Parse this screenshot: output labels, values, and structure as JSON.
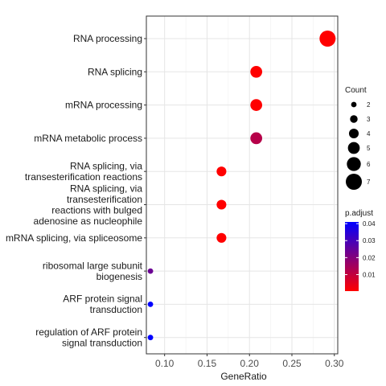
{
  "chart_data": {
    "type": "scatter",
    "xlabel": "GeneRatio",
    "xlim": [
      0.0833,
      0.3
    ],
    "xticks": [
      {
        "value": 0.1,
        "label": "0.10"
      },
      {
        "value": 0.15,
        "label": "0.15"
      },
      {
        "value": 0.2,
        "label": "0.20"
      },
      {
        "value": 0.25,
        "label": "0.25"
      },
      {
        "value": 0.3,
        "label": "0.30"
      }
    ],
    "grid": true,
    "terms": [
      {
        "label": [
          "RNA processing"
        ],
        "gene_ratio": 0.292,
        "count": 7,
        "p_adjust": 0.0003
      },
      {
        "label": [
          "RNA splicing"
        ],
        "gene_ratio": 0.208,
        "count": 5,
        "p_adjust": 0.0003
      },
      {
        "label": [
          "mRNA processing"
        ],
        "gene_ratio": 0.208,
        "count": 5,
        "p_adjust": 0.0003
      },
      {
        "label": [
          "mRNA metabolic process"
        ],
        "gene_ratio": 0.208,
        "count": 5,
        "p_adjust": 0.012
      },
      {
        "label": [
          "RNA splicing, via",
          "transesterification reactions"
        ],
        "gene_ratio": 0.167,
        "count": 4,
        "p_adjust": 0.0003
      },
      {
        "label": [
          "RNA splicing, via",
          "transesterification",
          "reactions with bulged",
          "adenosine as nucleophile"
        ],
        "gene_ratio": 0.167,
        "count": 4,
        "p_adjust": 0.0003
      },
      {
        "label": [
          "mRNA splicing, via spliceosome"
        ],
        "gene_ratio": 0.167,
        "count": 4,
        "p_adjust": 0.0003
      },
      {
        "label": [
          "ribosomal large subunit",
          "biogenesis"
        ],
        "gene_ratio": 0.0833,
        "count": 2,
        "p_adjust": 0.024
      },
      {
        "label": [
          "ARF protein signal",
          "transduction"
        ],
        "gene_ratio": 0.0833,
        "count": 2,
        "p_adjust": 0.041
      },
      {
        "label": [
          "regulation of ARF protein",
          "signal transduction"
        ],
        "gene_ratio": 0.0833,
        "count": 2,
        "p_adjust": 0.041
      }
    ],
    "size_legend": {
      "title": "Count",
      "entries": [
        {
          "count": 2,
          "label": "2"
        },
        {
          "count": 3,
          "label": "3"
        },
        {
          "count": 4,
          "label": "4"
        },
        {
          "count": 5,
          "label": "5"
        },
        {
          "count": 6,
          "label": "6"
        },
        {
          "count": 7,
          "label": "7"
        }
      ]
    },
    "color_legend": {
      "title": "p.adjust",
      "low_color": "#ff0000",
      "high_color": "#0000ff",
      "range": [
        0.0003,
        0.041
      ],
      "ticks": [
        {
          "value": 0.01,
          "label": "0.01"
        },
        {
          "value": 0.02,
          "label": "0.02"
        },
        {
          "value": 0.03,
          "label": "0.03"
        },
        {
          "value": 0.04,
          "label": "0.04"
        }
      ]
    }
  }
}
